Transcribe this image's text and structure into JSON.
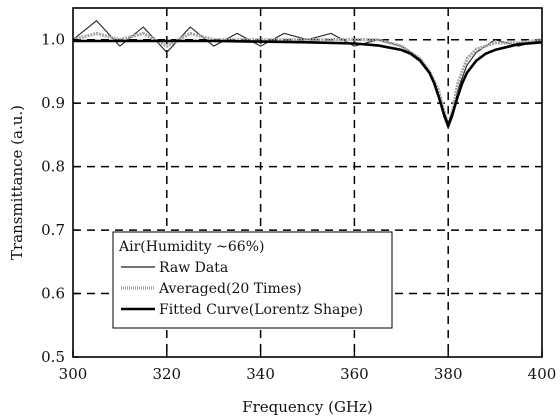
{
  "chart_data": {
    "type": "line",
    "xlabel": "Frequency (GHz)",
    "ylabel": "Transmittance (a.u.)",
    "xlim": [
      300,
      400
    ],
    "ylim": [
      0.5,
      1.05
    ],
    "xticks": [
      300,
      320,
      340,
      360,
      380,
      400
    ],
    "yticks": [
      0.5,
      0.6,
      0.7,
      0.8,
      0.9,
      1.0
    ],
    "xtick_labels": [
      "300",
      "320",
      "340",
      "360",
      "380",
      "400"
    ],
    "ytick_labels": [
      "0.5",
      "0.6",
      "0.7",
      "0.8",
      "0.9",
      "1.0"
    ],
    "grid": "dashed",
    "legend": {
      "position": "lower-left",
      "title": "Air(Humidity ~66%)",
      "entries": [
        "Raw Data",
        "Averaged(20 Times)",
        "Fitted Curve(Lorentz Shape)"
      ]
    },
    "series": [
      {
        "name": "Raw Data",
        "x": [
          300,
          305,
          310,
          315,
          320,
          325,
          330,
          335,
          340,
          345,
          350,
          355,
          360,
          365,
          370,
          374,
          376,
          378,
          379,
          380,
          381,
          382,
          384,
          386,
          390,
          395,
          400
        ],
        "y": [
          1.0,
          1.03,
          0.99,
          1.02,
          0.98,
          1.02,
          0.99,
          1.01,
          0.99,
          1.01,
          1.0,
          1.01,
          0.99,
          1.0,
          0.99,
          0.97,
          0.95,
          0.91,
          0.88,
          0.86,
          0.88,
          0.92,
          0.96,
          0.98,
          1.0,
          0.99,
          1.0
        ]
      },
      {
        "name": "Averaged(20 Times)",
        "x": [
          300,
          305,
          310,
          315,
          320,
          325,
          330,
          335,
          340,
          345,
          350,
          355,
          360,
          365,
          370,
          374,
          376,
          378,
          379,
          380,
          381,
          382,
          384,
          386,
          390,
          395,
          400
        ],
        "y": [
          1.0,
          1.01,
          1.0,
          1.01,
          0.99,
          1.01,
          1.0,
          1.0,
          1.0,
          1.0,
          1.0,
          1.0,
          1.0,
          1.0,
          0.99,
          0.97,
          0.95,
          0.92,
          0.89,
          0.865,
          0.89,
          0.93,
          0.97,
          0.985,
          0.995,
          0.995,
          1.0
        ]
      },
      {
        "name": "Fitted Curve(Lorentz Shape)",
        "x": [
          300,
          310,
          320,
          330,
          340,
          350,
          360,
          365,
          370,
          372,
          374,
          376,
          377,
          378,
          379,
          380,
          381,
          382,
          383,
          384,
          386,
          388,
          390,
          395,
          400
        ],
        "y": [
          0.998,
          0.998,
          0.998,
          0.998,
          0.997,
          0.996,
          0.994,
          0.991,
          0.984,
          0.978,
          0.967,
          0.948,
          0.932,
          0.91,
          0.885,
          0.865,
          0.885,
          0.91,
          0.932,
          0.948,
          0.967,
          0.978,
          0.984,
          0.993,
          0.996
        ]
      }
    ]
  }
}
